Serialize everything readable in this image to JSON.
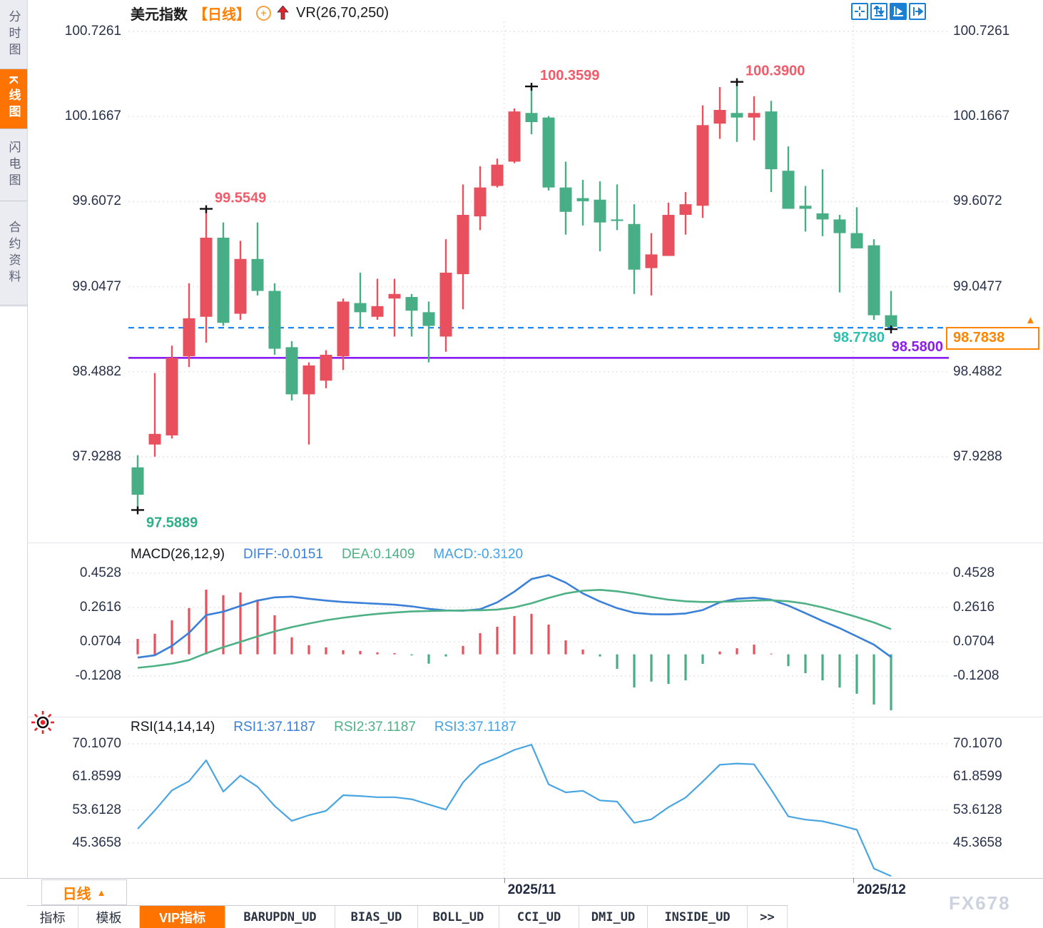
{
  "app": {
    "watermark": "FX678"
  },
  "colors": {
    "up": "#e8505e",
    "down": "#47ae85",
    "diff_line": "#3a7fd8",
    "dea_line": "#4db185",
    "macd_label": "#3fa3e8",
    "rsi_line": "#49a5e2",
    "dashed_blue": "#1e88f0",
    "purple": "#8b1df2",
    "teal_label": "#2cc0ae",
    "orange": "#ff7300",
    "annotation_red": "#f25a69",
    "annotation_green": "#2fae89",
    "axis_text": "#273149",
    "icon_blue": "#1b7fd4",
    "grid": "#e4e4e6",
    "marker": "#111111"
  },
  "sidebar": {
    "items": [
      {
        "label": "分时图",
        "active": false
      },
      {
        "label": "K线图",
        "active": true
      },
      {
        "label": "闪电图",
        "active": false
      },
      {
        "label": "合约资料",
        "active": false
      }
    ]
  },
  "header": {
    "symbol": "美元指数",
    "period_tag": "【日线】",
    "add_icon": "add-indicator-icon",
    "trend_icon": "red-up-arrow-icon",
    "indicator": "VR(26,70,250)"
  },
  "toolbar": {
    "icons": [
      "crosshair-icon",
      "axis-zoom-icon",
      "play-zoom-icon",
      "pan-right-icon"
    ],
    "active_index": 2
  },
  "levels": {
    "dashed_line": {
      "value": 98.778,
      "label": "98.7780",
      "style": "dashed"
    },
    "support_line": {
      "value": 98.58,
      "label": "98.5800",
      "style": "solid"
    }
  },
  "price_tag": {
    "value": 98.7838,
    "label": "98.7838"
  },
  "period_selector": {
    "label": "日线",
    "arrow": "▲"
  },
  "x_axis": {
    "labels": [
      "2025/11",
      "2025/12"
    ]
  },
  "bottom_tabs": [
    {
      "label": "指标",
      "active": false
    },
    {
      "label": "模板",
      "active": false
    },
    {
      "label": "VIP指标",
      "active": true
    },
    {
      "label": "BARUPDN_UD",
      "active": false
    },
    {
      "label": "BIAS_UD",
      "active": false
    },
    {
      "label": "BOLL_UD",
      "active": false
    },
    {
      "label": "CCI_UD",
      "active": false
    },
    {
      "label": "DMI_UD",
      "active": false
    },
    {
      "label": "INSIDE_UD",
      "active": false
    },
    {
      "label": ">>",
      "active": false
    }
  ],
  "chart_data": [
    {
      "type": "candlestick",
      "title": "美元指数 日线 (US Dollar Index, daily)",
      "ylim": [
        97.361,
        100.792
      ],
      "y_ticks": [
        100.7261,
        100.1667,
        99.6072,
        99.0477,
        98.4882,
        97.9288
      ],
      "x_labels": [
        {
          "index": 21.4,
          "label": "2025/11"
        },
        {
          "index": 41.8,
          "label": "2025/12"
        }
      ],
      "candles_format": [
        "open",
        "high",
        "low",
        "close"
      ],
      "candles": [
        [
          97.86,
          97.94,
          97.5889,
          97.68
        ],
        [
          98.01,
          98.48,
          97.93,
          98.08
        ],
        [
          98.07,
          98.66,
          98.05,
          98.58
        ],
        [
          98.59,
          99.07,
          98.52,
          98.84
        ],
        [
          98.85,
          99.5549,
          98.68,
          99.37
        ],
        [
          99.37,
          99.47,
          98.79,
          98.81
        ],
        [
          98.87,
          99.35,
          98.83,
          99.23
        ],
        [
          99.23,
          99.47,
          98.99,
          99.02
        ],
        [
          99.02,
          99.07,
          98.6,
          98.64
        ],
        [
          98.65,
          98.69,
          98.3,
          98.34
        ],
        [
          98.34,
          98.55,
          98.01,
          98.53
        ],
        [
          98.43,
          98.63,
          98.38,
          98.6
        ],
        [
          98.59,
          98.97,
          98.5,
          98.95
        ],
        [
          98.94,
          99.14,
          98.78,
          98.88
        ],
        [
          98.85,
          99.1,
          98.83,
          98.92
        ],
        [
          98.97,
          99.1,
          98.72,
          99.0
        ],
        [
          98.98,
          99.0,
          98.72,
          98.89
        ],
        [
          98.88,
          98.95,
          98.55,
          98.79
        ],
        [
          98.72,
          99.36,
          98.62,
          99.14
        ],
        [
          99.13,
          99.72,
          98.9,
          99.52
        ],
        [
          99.51,
          99.84,
          99.42,
          99.7
        ],
        [
          99.71,
          99.89,
          99.7,
          99.85
        ],
        [
          99.87,
          100.22,
          99.86,
          100.2
        ],
        [
          100.19,
          100.3599,
          100.05,
          100.13
        ],
        [
          100.16,
          100.17,
          99.68,
          99.7
        ],
        [
          99.7,
          99.87,
          99.39,
          99.54
        ],
        [
          99.63,
          99.75,
          99.45,
          99.61
        ],
        [
          99.62,
          99.74,
          99.28,
          99.47
        ],
        [
          99.49,
          99.72,
          99.42,
          99.48
        ],
        [
          99.46,
          99.59,
          99.0,
          99.16
        ],
        [
          99.17,
          99.4,
          98.99,
          99.26
        ],
        [
          99.25,
          99.6,
          99.25,
          99.52
        ],
        [
          99.52,
          99.67,
          99.39,
          99.59
        ],
        [
          99.58,
          100.24,
          99.5,
          100.11
        ],
        [
          100.12,
          100.36,
          100.02,
          100.21
        ],
        [
          100.19,
          100.39,
          100.0,
          100.16
        ],
        [
          100.16,
          100.3,
          100.01,
          100.19
        ],
        [
          100.2,
          100.27,
          99.67,
          99.82
        ],
        [
          99.81,
          99.97,
          99.56,
          99.56
        ],
        [
          99.58,
          99.71,
          99.41,
          99.56
        ],
        [
          99.53,
          99.82,
          99.38,
          99.49
        ],
        [
          99.49,
          99.52,
          99.01,
          99.4
        ],
        [
          99.4,
          99.57,
          99.3,
          99.3
        ],
        [
          99.32,
          99.36,
          98.83,
          98.86
        ],
        [
          98.86,
          99.02,
          98.778,
          98.7838
        ]
      ],
      "annotations": [
        {
          "index": 0,
          "pos": "low",
          "text": "97.5889",
          "color_key": "annotation_green"
        },
        {
          "index": 4,
          "pos": "high",
          "text": "99.5549",
          "color_key": "annotation_red"
        },
        {
          "index": 23,
          "pos": "high",
          "text": "100.3599",
          "color_key": "annotation_red"
        },
        {
          "index": 35,
          "pos": "high",
          "text": "100.3900",
          "color_key": "annotation_red"
        },
        {
          "index": 44,
          "pos": "low",
          "text": "",
          "color_key": "annotation_red"
        }
      ]
    },
    {
      "type": "bar+line",
      "name": "MACD",
      "params": "MACD(26,12,9)",
      "legend": [
        {
          "label": "DIFF:-0.0151",
          "color_key": "diff_line"
        },
        {
          "label": "DEA:0.1409",
          "color_key": "dea_line"
        },
        {
          "label": "MACD:-0.3120",
          "color_key": "macd_label"
        }
      ],
      "ylim": [
        -0.344,
        0.612
      ],
      "y_ticks": [
        0.4528,
        0.2616,
        0.0704,
        -0.1208
      ],
      "hist": [
        0.086,
        0.115,
        0.19,
        0.258,
        0.361,
        0.33,
        0.345,
        0.306,
        0.218,
        0.095,
        0.051,
        0.039,
        0.023,
        0.019,
        0.011,
        0.007,
        -0.006,
        -0.052,
        -0.012,
        0.047,
        0.118,
        0.154,
        0.214,
        0.226,
        0.166,
        0.078,
        0.027,
        -0.012,
        -0.081,
        -0.185,
        -0.152,
        -0.165,
        -0.145,
        -0.053,
        0.016,
        0.034,
        0.054,
        0.004,
        -0.066,
        -0.105,
        -0.145,
        -0.185,
        -0.22,
        -0.28,
        -0.312
      ],
      "diff": [
        -0.018,
        -0.005,
        0.047,
        0.12,
        0.219,
        0.238,
        0.27,
        0.3,
        0.318,
        0.322,
        0.31,
        0.3,
        0.292,
        0.287,
        0.282,
        0.277,
        0.268,
        0.254,
        0.245,
        0.243,
        0.252,
        0.29,
        0.35,
        0.42,
        0.442,
        0.4,
        0.34,
        0.295,
        0.258,
        0.232,
        0.224,
        0.223,
        0.228,
        0.247,
        0.29,
        0.31,
        0.316,
        0.305,
        0.272,
        0.23,
        0.186,
        0.146,
        0.1,
        0.054,
        -0.0151
      ],
      "dea": [
        -0.075,
        -0.065,
        -0.052,
        -0.032,
        0.006,
        0.04,
        0.07,
        0.1,
        0.128,
        0.152,
        0.172,
        0.19,
        0.204,
        0.216,
        0.226,
        0.233,
        0.239,
        0.242,
        0.244,
        0.245,
        0.246,
        0.25,
        0.262,
        0.285,
        0.315,
        0.34,
        0.355,
        0.36,
        0.352,
        0.338,
        0.32,
        0.305,
        0.296,
        0.292,
        0.293,
        0.296,
        0.3,
        0.302,
        0.296,
        0.283,
        0.262,
        0.236,
        0.208,
        0.178,
        0.1409
      ]
    },
    {
      "type": "line",
      "name": "RSI",
      "params": "RSI(14,14,14)",
      "legend": [
        {
          "label": "RSI1:37.1187",
          "color_key": "diff_line"
        },
        {
          "label": "RSI2:37.1187",
          "color_key": "dea_line"
        },
        {
          "label": "RSI3:37.1187",
          "color_key": "macd_label"
        }
      ],
      "ylim": [
        36.64,
        76.52
      ],
      "y_ticks": [
        70.107,
        61.8599,
        53.6128,
        45.3658
      ],
      "rsi": [
        48.9,
        53.5,
        58.5,
        60.8,
        66.0,
        58.2,
        62.2,
        59.4,
        54.6,
        50.9,
        52.3,
        53.4,
        57.3,
        57.1,
        56.8,
        56.8,
        56.3,
        55.0,
        53.7,
        60.5,
        64.9,
        66.6,
        68.6,
        69.9,
        60.0,
        58.0,
        58.4,
        56.0,
        55.7,
        50.4,
        51.3,
        54.3,
        56.7,
        60.7,
        64.9,
        65.2,
        65.0,
        58.7,
        52.0,
        51.2,
        50.8,
        49.8,
        48.7,
        39.0,
        37.1187
      ]
    }
  ]
}
